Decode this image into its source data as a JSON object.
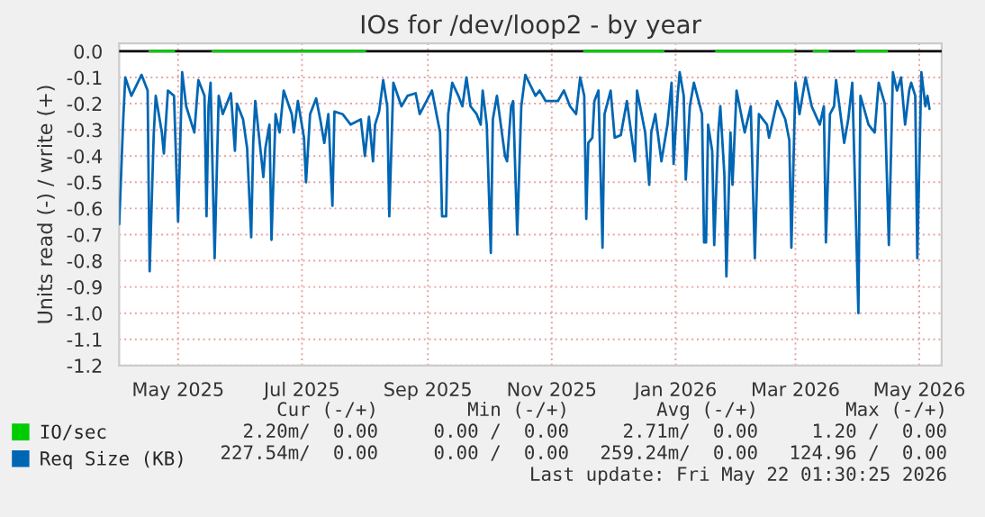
{
  "chart_data": {
    "type": "line",
    "title": "IOs for /dev/loop2 - by year",
    "ylabel": "Units read (-) / write (+)",
    "xlim": [
      "2025-04-02",
      "2026-05-12"
    ],
    "ylim": [
      -1.2,
      0.03
    ],
    "xticks": [
      {
        "value": "2025-05-01",
        "label": "May 2025"
      },
      {
        "value": "2025-07-01",
        "label": "Jul 2025"
      },
      {
        "value": "2025-09-01",
        "label": "Sep 2025"
      },
      {
        "value": "2025-11-01",
        "label": "Nov 2025"
      },
      {
        "value": "2026-01-01",
        "label": "Jan 2026"
      },
      {
        "value": "2026-03-01",
        "label": "Mar 2026"
      },
      {
        "value": "2026-05-01",
        "label": "May 2026"
      }
    ],
    "yticks": [
      {
        "value": 0,
        "label": "0.0"
      },
      {
        "value": -0.1,
        "label": "-0.1"
      },
      {
        "value": -0.2,
        "label": "-0.2"
      },
      {
        "value": -0.3,
        "label": "-0.3"
      },
      {
        "value": -0.4,
        "label": "-0.4"
      },
      {
        "value": -0.5,
        "label": "-0.5"
      },
      {
        "value": -0.6,
        "label": "-0.6"
      },
      {
        "value": -0.7,
        "label": "-0.7"
      },
      {
        "value": -0.8,
        "label": "-0.8"
      },
      {
        "value": -0.9,
        "label": "-0.9"
      },
      {
        "value": -1.0,
        "label": "-1.0"
      },
      {
        "value": -1.1,
        "label": "-1.1"
      },
      {
        "value": -1.2,
        "label": "-1.2"
      }
    ],
    "grid": true,
    "legend": "bottom",
    "marker": "none",
    "line_style": "solid",
    "ref_lines": [
      {
        "axis": "y",
        "value": 0,
        "color": "#000000"
      }
    ],
    "series": [
      {
        "name": "IO/sec",
        "color": "#00cc00",
        "x": [
          "2025-04-17",
          "2025-04-29",
          "2025-05-05",
          "2025-05-18",
          "2025-08-01",
          "2025-09-01",
          "2025-11-17",
          "2025-12-26",
          "2026-01-10",
          "2026-01-21",
          "2026-02-28",
          "2026-03-05",
          "2026-03-10",
          "2026-03-17",
          "2026-03-25",
          "2026-03-31",
          "2026-04-15"
        ],
        "values": [
          0,
          0,
          null,
          0,
          0,
          null,
          0,
          0,
          null,
          0,
          0,
          null,
          0,
          0,
          null,
          0,
          0
        ]
      },
      {
        "name": "Req Size (KB)",
        "color": "#0066b3",
        "x": [
          "2025-04-02",
          "2025-04-04",
          "2025-04-05",
          "2025-04-08",
          "2025-04-13",
          "2025-04-16",
          "2025-04-17",
          "2025-04-19",
          "2025-04-20",
          "2025-04-23",
          "2025-04-24",
          "2025-04-26",
          "2025-04-29",
          "2025-05-01",
          "2025-05-03",
          "2025-05-05",
          "2025-05-09",
          "2025-05-11",
          "2025-05-14",
          "2025-05-15",
          "2025-05-16",
          "2025-05-17",
          "2025-05-19",
          "2025-05-21",
          "2025-05-23",
          "2025-05-27",
          "2025-05-29",
          "2025-05-30",
          "2025-06-02",
          "2025-06-04",
          "2025-06-06",
          "2025-06-07",
          "2025-06-08",
          "2025-06-12",
          "2025-06-13",
          "2025-06-15",
          "2025-06-16",
          "2025-06-18",
          "2025-06-20",
          "2025-06-22",
          "2025-06-26",
          "2025-06-27",
          "2025-06-29",
          "2025-07-02",
          "2025-07-03",
          "2025-07-05",
          "2025-07-08",
          "2025-07-10",
          "2025-07-12",
          "2025-07-14",
          "2025-07-16",
          "2025-07-17",
          "2025-07-21",
          "2025-07-25",
          "2025-07-30",
          "2025-08-01",
          "2025-08-03",
          "2025-08-05",
          "2025-08-06",
          "2025-08-08",
          "2025-08-10",
          "2025-08-12",
          "2025-08-13",
          "2025-08-15",
          "2025-08-19",
          "2025-08-22",
          "2025-08-26",
          "2025-08-28",
          "2025-09-03",
          "2025-09-07",
          "2025-09-08",
          "2025-09-10",
          "2025-09-11",
          "2025-09-13",
          "2025-09-16",
          "2025-09-18",
          "2025-09-20",
          "2025-09-22",
          "2025-09-25",
          "2025-09-27",
          "2025-09-28",
          "2025-09-30",
          "2025-10-02",
          "2025-10-03",
          "2025-10-05",
          "2025-10-09",
          "2025-10-10",
          "2025-10-12",
          "2025-10-13",
          "2025-10-15",
          "2025-10-17",
          "2025-10-19",
          "2025-10-24",
          "2025-10-26",
          "2025-10-29",
          "2025-11-04",
          "2025-11-07",
          "2025-11-10",
          "2025-11-13",
          "2025-11-15",
          "2025-11-17",
          "2025-11-18",
          "2025-11-19",
          "2025-11-21",
          "2025-11-22",
          "2025-11-24",
          "2025-11-26",
          "2025-11-27",
          "2025-11-30",
          "2025-12-02",
          "2025-12-05",
          "2025-12-08",
          "2025-12-12",
          "2025-12-13",
          "2025-12-17",
          "2025-12-19",
          "2025-12-20",
          "2025-12-22",
          "2025-12-25",
          "2025-12-28",
          "2025-12-30",
          "2025-12-31",
          "2026-01-02",
          "2026-01-03",
          "2026-01-05",
          "2026-01-06",
          "2026-01-08",
          "2026-01-10",
          "2026-01-14",
          "2026-01-15",
          "2026-01-16",
          "2026-01-17",
          "2026-01-19",
          "2026-01-20",
          "2026-01-22",
          "2026-01-23",
          "2026-01-25",
          "2026-01-26",
          "2026-01-28",
          "2026-01-29",
          "2026-01-31",
          "2026-02-04",
          "2026-02-07",
          "2026-02-09",
          "2026-02-11",
          "2026-02-15",
          "2026-02-16",
          "2026-02-20",
          "2026-02-24",
          "2026-02-26",
          "2026-02-27",
          "2026-03-01",
          "2026-03-03",
          "2026-03-06",
          "2026-03-09",
          "2026-03-13",
          "2026-03-15",
          "2026-03-16",
          "2026-03-18",
          "2026-03-20",
          "2026-03-21",
          "2026-03-25",
          "2026-03-27",
          "2026-03-29",
          "2026-04-01",
          "2026-04-02",
          "2026-04-06",
          "2026-04-09",
          "2026-04-11",
          "2026-04-14",
          "2026-04-16",
          "2026-04-18",
          "2026-04-20",
          "2026-04-22",
          "2026-04-24",
          "2026-04-26",
          "2026-04-27",
          "2026-04-29",
          "2026-04-30",
          "2026-05-02",
          "2026-05-04",
          "2026-05-05",
          "2026-05-06"
        ],
        "values": [
          -0.66,
          -0.26,
          -0.1,
          -0.17,
          -0.09,
          -0.15,
          -0.84,
          -0.32,
          -0.17,
          -0.31,
          -0.39,
          -0.15,
          -0.17,
          -0.65,
          -0.08,
          -0.21,
          -0.31,
          -0.11,
          -0.17,
          -0.63,
          -0.21,
          -0.12,
          -0.79,
          -0.17,
          -0.24,
          -0.16,
          -0.38,
          -0.2,
          -0.26,
          -0.37,
          -0.71,
          -0.35,
          -0.19,
          -0.48,
          -0.37,
          -0.28,
          -0.72,
          -0.24,
          -0.31,
          -0.15,
          -0.24,
          -0.31,
          -0.19,
          -0.33,
          -0.5,
          -0.24,
          -0.18,
          -0.26,
          -0.35,
          -0.24,
          -0.59,
          -0.23,
          -0.24,
          -0.28,
          -0.26,
          -0.4,
          -0.25,
          -0.42,
          -0.28,
          -0.23,
          -0.11,
          -0.21,
          -0.63,
          -0.12,
          -0.21,
          -0.17,
          -0.16,
          -0.24,
          -0.15,
          -0.31,
          -0.63,
          -0.63,
          -0.24,
          -0.12,
          -0.17,
          -0.21,
          -0.1,
          -0.21,
          -0.24,
          -0.28,
          -0.15,
          -0.28,
          -0.77,
          -0.26,
          -0.17,
          -0.4,
          -0.42,
          -0.21,
          -0.19,
          -0.7,
          -0.21,
          -0.09,
          -0.17,
          -0.15,
          -0.19,
          -0.19,
          -0.15,
          -0.21,
          -0.24,
          -0.1,
          -0.17,
          -0.64,
          -0.35,
          -0.33,
          -0.19,
          -0.15,
          -0.75,
          -0.24,
          -0.15,
          -0.33,
          -0.32,
          -0.19,
          -0.42,
          -0.15,
          -0.31,
          -0.51,
          -0.31,
          -0.24,
          -0.42,
          -0.28,
          -0.12,
          -0.43,
          -0.17,
          -0.08,
          -0.17,
          -0.49,
          -0.21,
          -0.12,
          -0.24,
          -0.73,
          -0.73,
          -0.28,
          -0.38,
          -0.74,
          -0.31,
          -0.21,
          -0.47,
          -0.86,
          -0.31,
          -0.51,
          -0.15,
          -0.31,
          -0.21,
          -0.79,
          -0.24,
          -0.28,
          -0.33,
          -0.19,
          -0.26,
          -0.34,
          -0.75,
          -0.12,
          -0.24,
          -0.1,
          -0.21,
          -0.28,
          -0.21,
          -0.73,
          -0.24,
          -0.21,
          -0.11,
          -0.35,
          -0.26,
          -0.12,
          -1.0,
          -0.17,
          -0.28,
          -0.31,
          -0.12,
          -0.2,
          -0.74,
          -0.08,
          -0.15,
          -0.1,
          -0.28,
          -0.15,
          -0.12,
          -0.17,
          -0.79,
          -0.08,
          -0.21,
          -0.17,
          -0.22
        ]
      }
    ],
    "annotations": [
      "Cur (-/+)",
      "Min (-/+)",
      "Avg (-/+)",
      "Max (-/+)",
      "2.20m/  0.00",
      "0.00 /  0.00",
      "2.71m/  0.00",
      "1.20 /  0.00",
      "227.54m/  0.00",
      "0.00 /  0.00",
      "259.24m/  0.00",
      "124.96 /  0.00",
      "Last update: Fri May 22 01:30:25 2026"
    ]
  }
}
